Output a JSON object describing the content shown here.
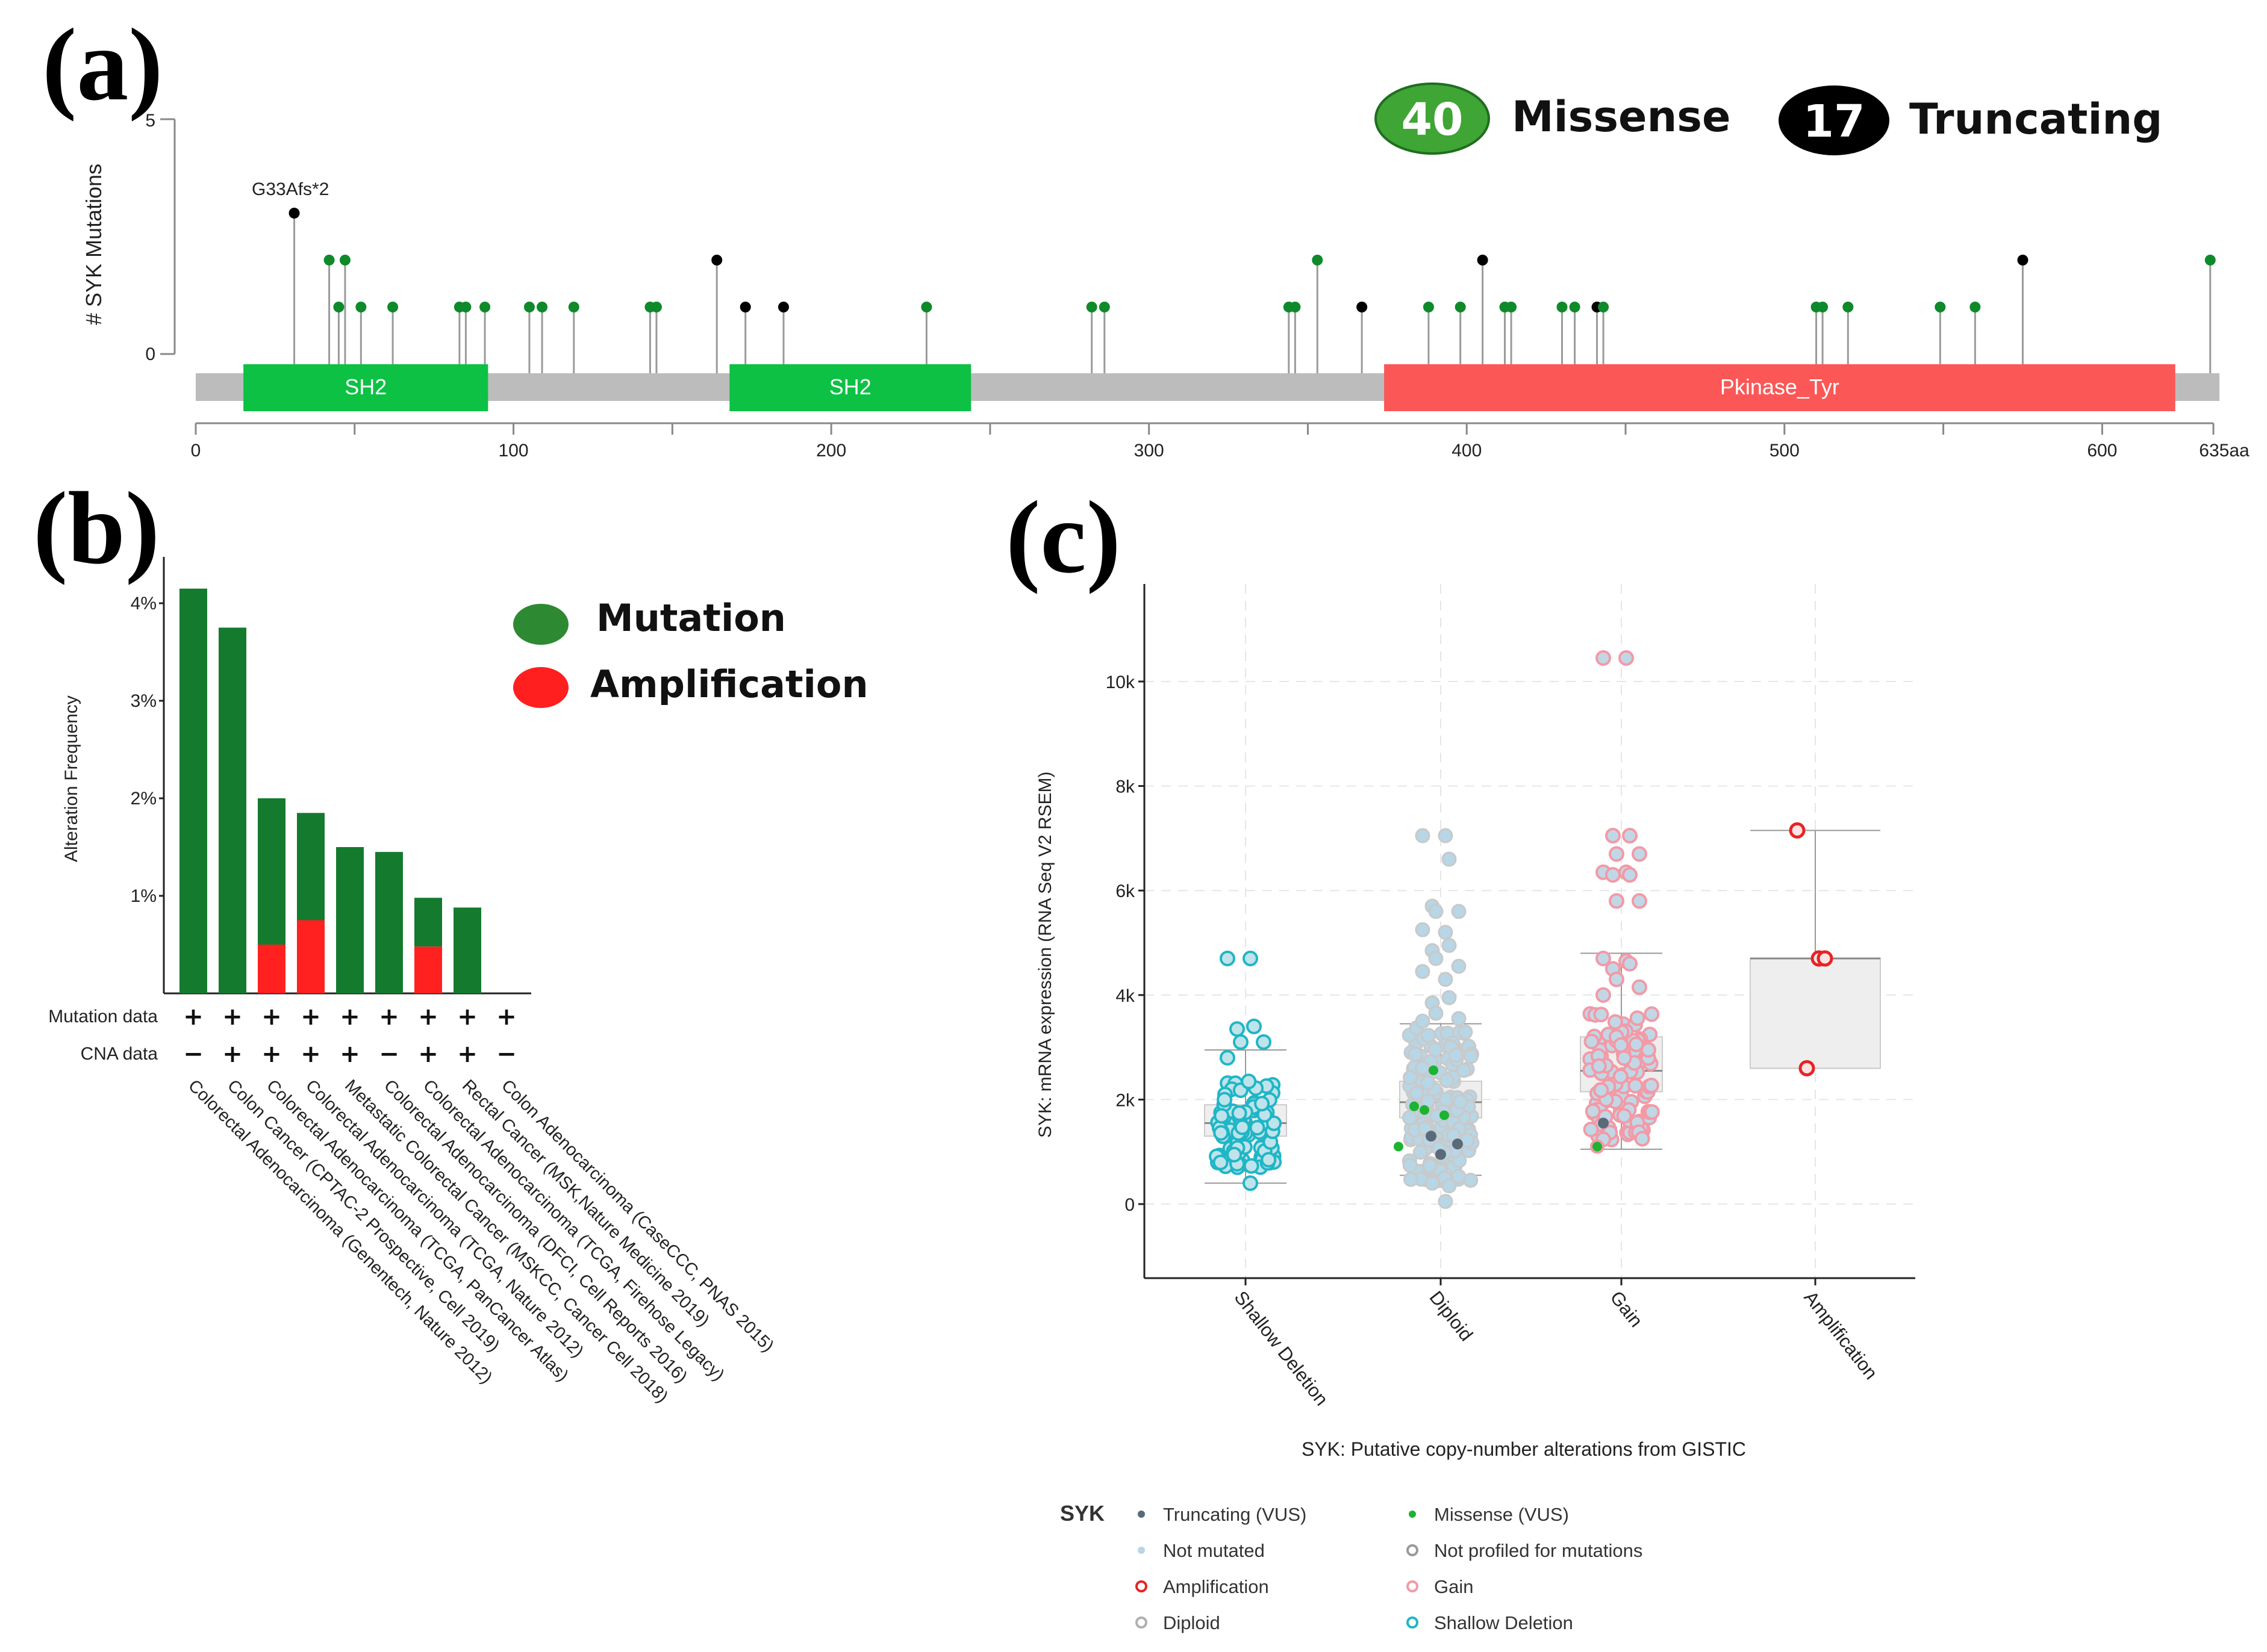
{
  "panels": {
    "a": "(a)",
    "b": "(b)",
    "c": "(c)"
  },
  "colors": {
    "missense": "#0e8a2a",
    "missense_badge": "#3fa535",
    "truncating": "#000000",
    "sh2": "#0cc143",
    "kinase": "#fb5757",
    "backbone": "#bcbcbc",
    "mutation_bar": "#147a2e",
    "amplification_bar": "#ff2020",
    "shallow": "#1fb6c6",
    "diploid": "#b8c9d3",
    "gain": "#f29aa6",
    "amp": "#e82323"
  },
  "lollipop": {
    "ylabel": "# SYK Mutations",
    "ymax_label": "5",
    "ymin_label": "0",
    "ymax": 5,
    "protein_length": 635,
    "x_ticks": [
      "0",
      "100",
      "200",
      "300",
      "400",
      "500",
      "600",
      "635aa"
    ],
    "hotspot_label": "G33Afs*2",
    "missense_count": "40",
    "missense_label": "Missense",
    "truncating_count": "17",
    "truncating_label": "Truncating",
    "domains": [
      {
        "name": "SH2",
        "start": 15,
        "end": 92,
        "kind": "sh2"
      },
      {
        "name": "SH2",
        "start": 168,
        "end": 244,
        "kind": "sh2"
      },
      {
        "name": "Pkinase_Tyr",
        "start": 374,
        "end": 623,
        "kind": "kinase"
      }
    ],
    "mutations": [
      {
        "pos": 31,
        "count": 3,
        "type": "truncating"
      },
      {
        "pos": 42,
        "count": 2,
        "type": "missense"
      },
      {
        "pos": 45,
        "count": 1,
        "type": "missense"
      },
      {
        "pos": 47,
        "count": 2,
        "type": "missense"
      },
      {
        "pos": 52,
        "count": 1,
        "type": "missense"
      },
      {
        "pos": 62,
        "count": 1,
        "type": "missense"
      },
      {
        "pos": 83,
        "count": 1,
        "type": "missense"
      },
      {
        "pos": 85,
        "count": 1,
        "type": "missense"
      },
      {
        "pos": 91,
        "count": 1,
        "type": "missense"
      },
      {
        "pos": 105,
        "count": 1,
        "type": "missense"
      },
      {
        "pos": 109,
        "count": 1,
        "type": "missense"
      },
      {
        "pos": 119,
        "count": 1,
        "type": "missense"
      },
      {
        "pos": 143,
        "count": 1,
        "type": "missense"
      },
      {
        "pos": 145,
        "count": 1,
        "type": "missense"
      },
      {
        "pos": 164,
        "count": 2,
        "type": "truncating"
      },
      {
        "pos": 173,
        "count": 1,
        "type": "truncating"
      },
      {
        "pos": 185,
        "count": 1,
        "type": "truncating"
      },
      {
        "pos": 230,
        "count": 1,
        "type": "missense"
      },
      {
        "pos": 282,
        "count": 1,
        "type": "missense"
      },
      {
        "pos": 286,
        "count": 1,
        "type": "missense"
      },
      {
        "pos": 344,
        "count": 1,
        "type": "missense"
      },
      {
        "pos": 346,
        "count": 1,
        "type": "missense"
      },
      {
        "pos": 353,
        "count": 2,
        "type": "missense"
      },
      {
        "pos": 367,
        "count": 1,
        "type": "truncating"
      },
      {
        "pos": 388,
        "count": 1,
        "type": "missense"
      },
      {
        "pos": 398,
        "count": 1,
        "type": "missense"
      },
      {
        "pos": 405,
        "count": 2,
        "type": "truncating"
      },
      {
        "pos": 412,
        "count": 1,
        "type": "missense"
      },
      {
        "pos": 414,
        "count": 1,
        "type": "missense"
      },
      {
        "pos": 430,
        "count": 1,
        "type": "missense"
      },
      {
        "pos": 434,
        "count": 1,
        "type": "missense"
      },
      {
        "pos": 441,
        "count": 1,
        "type": "truncating"
      },
      {
        "pos": 443,
        "count": 1,
        "type": "missense"
      },
      {
        "pos": 510,
        "count": 1,
        "type": "missense"
      },
      {
        "pos": 512,
        "count": 1,
        "type": "missense"
      },
      {
        "pos": 520,
        "count": 1,
        "type": "missense"
      },
      {
        "pos": 549,
        "count": 1,
        "type": "missense"
      },
      {
        "pos": 560,
        "count": 1,
        "type": "missense"
      },
      {
        "pos": 575,
        "count": 2,
        "type": "truncating"
      },
      {
        "pos": 634,
        "count": 2,
        "type": "missense"
      }
    ]
  },
  "chart_data": [
    {
      "type": "bar",
      "title": "",
      "ylabel": "Alteration Frequency",
      "ylim": [
        0,
        4.3
      ],
      "y_ticks": [
        "1%",
        "2%",
        "3%",
        "4%"
      ],
      "legend": [
        {
          "name": "Mutation",
          "color": "#2d8a32"
        },
        {
          "name": "Amplification",
          "color": "#ff1f1f"
        }
      ],
      "categories": [
        "Colorectal Adenocarcinoma (Genentech, Nature 2012)",
        "Colon Cancer (CPTAC-2 Prospective, Cell 2019)",
        "Colorectal Adenocarcinoma (TCGA, PanCancer Atlas)",
        "Colorectal Adenocarcinoma (TCGA, Nature 2012)",
        "Metastatic Colorectal Cancer (MSKCC, Cancer Cell 2018)",
        "Colorectal Adenocarcinoma (DFCI, Cell Reports 2016)",
        "Colorectal Adenocarcinoma (TCGA, Firehose Legacy)",
        "Rectal Cancer (MSK,Nature Medicine 2019)",
        "Colon Adenocarcinoma (CaseCCC, PNAS 2015)"
      ],
      "series": [
        {
          "name": "Mutation",
          "values": [
            4.15,
            3.75,
            1.5,
            1.1,
            1.5,
            1.45,
            0.5,
            0.88,
            0
          ]
        },
        {
          "name": "Amplification",
          "values": [
            0,
            0,
            0.5,
            0.75,
            0,
            0,
            0.48,
            0,
            0
          ]
        }
      ],
      "row_labels": [
        "Mutation data",
        "CNA data"
      ],
      "mutation_data": [
        "+",
        "+",
        "+",
        "+",
        "+",
        "+",
        "+",
        "+",
        "+"
      ],
      "cna_data": [
        "−",
        "+",
        "+",
        "+",
        "+",
        "−",
        "+",
        "+",
        "−"
      ]
    },
    {
      "type": "scatter",
      "title": "",
      "xlabel": "SYK: Putative copy-number alterations from GISTIC",
      "ylabel": "SYK: mRNA expression (RNA Seq V2 RSEM)",
      "ylim": [
        -1300,
        11800
      ],
      "y_ticks": [
        "0",
        "2k",
        "4k",
        "6k",
        "8k",
        "10k"
      ],
      "categories": [
        "Shallow Deletion",
        "Diploid",
        "Gain",
        "Amplification"
      ],
      "boxes": [
        {
          "q1": 1300,
          "median": 1550,
          "q3": 1900,
          "whisker_low": 400,
          "whisker_high": 2950
        },
        {
          "q1": 1650,
          "median": 1950,
          "q3": 2350,
          "whisker_low": 550,
          "whisker_high": 3450
        },
        {
          "q1": 2150,
          "median": 2550,
          "q3": 3200,
          "whisker_low": 1050,
          "whisker_high": 4800
        },
        {
          "q1": 2600,
          "median": 4700,
          "q3": 4700,
          "whisker_low": 2600,
          "whisker_high": 7150
        }
      ],
      "outliers": [
        {
          "group": 0,
          "values": [
            4700,
            4700,
            3400,
            3350,
            3100,
            3100,
            2800,
            400
          ]
        },
        {
          "group": 1,
          "values": [
            7050,
            7050,
            6600,
            5700,
            5600,
            5600,
            5250,
            5200,
            4950,
            4850,
            4700,
            4550,
            4450,
            4300,
            3950,
            3850,
            3650,
            3550,
            3500,
            50,
            350,
            400
          ]
        },
        {
          "group": 2,
          "values": [
            10450,
            10450,
            7050,
            7050,
            6700,
            6700,
            6350,
            6350,
            6300,
            6300,
            5800,
            5800,
            4700,
            4650,
            4600,
            4500,
            4300,
            4150,
            4000
          ]
        },
        {
          "group": 3,
          "values": [
            7150,
            4700,
            4700,
            2600
          ]
        }
      ],
      "legend_title": "SYK",
      "legend": [
        {
          "name": "Truncating (VUS)",
          "marker": "dot",
          "color": "#5a6a78"
        },
        {
          "name": "Missense (VUS)",
          "marker": "dot",
          "color": "#1db331"
        },
        {
          "name": "Not mutated",
          "marker": "dot",
          "color": "#b7d6e6"
        },
        {
          "name": "Not profiled for mutations",
          "marker": "ring",
          "color": "#9a9a9a"
        },
        {
          "name": "Amplification",
          "marker": "ring",
          "color": "#e82323"
        },
        {
          "name": "Gain",
          "marker": "ring",
          "color": "#f29aa6"
        },
        {
          "name": "Diploid",
          "marker": "ring",
          "color": "#b0b0b0"
        },
        {
          "name": "Shallow Deletion",
          "marker": "ring",
          "color": "#1fb6c6"
        }
      ]
    }
  ]
}
